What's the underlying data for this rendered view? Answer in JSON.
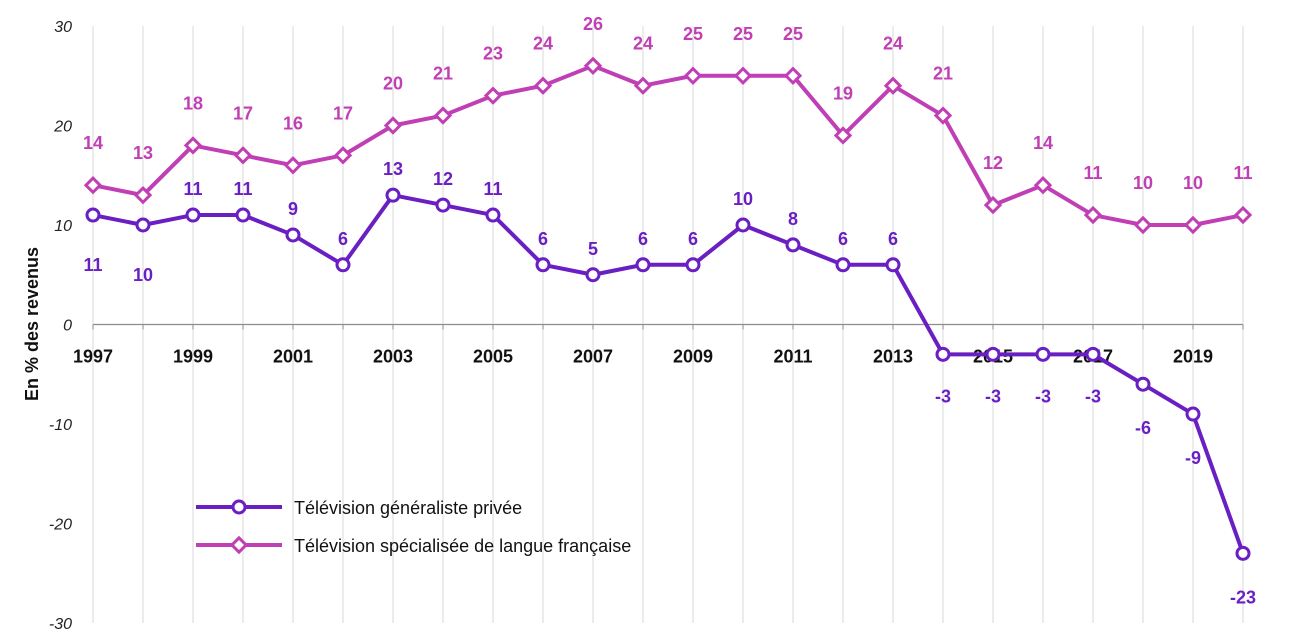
{
  "chart_data": {
    "type": "line",
    "ylabel": "En % des revenus",
    "ylim": [
      -30,
      30
    ],
    "yticks": [
      "30",
      "20",
      "10",
      "0",
      "-10",
      "-20",
      "-30"
    ],
    "xtick_labels": [
      "1997",
      "1999",
      "2001",
      "2003",
      "2005",
      "2007",
      "2009",
      "2011",
      "2013",
      "2015",
      "2017",
      "2019"
    ],
    "x": [
      1997,
      1998,
      1999,
      2000,
      2001,
      2002,
      2003,
      2004,
      2005,
      2006,
      2007,
      2008,
      2009,
      2010,
      2011,
      2012,
      2013,
      2014,
      2015,
      2016,
      2017,
      2018,
      2019,
      2020
    ],
    "grid": "vertical",
    "legend_position": "bottom-left",
    "series": [
      {
        "name": "Télévision généraliste privée",
        "color": "#6a1fc2",
        "marker": "circle",
        "values": [
          11,
          10,
          11,
          11,
          9,
          6,
          13,
          12,
          11,
          6,
          5,
          6,
          6,
          10,
          8,
          6,
          6,
          -3,
          -3,
          -3,
          -3,
          -6,
          -9,
          -23
        ],
        "labels": [
          "11",
          "10",
          "11",
          "11",
          "9",
          "6",
          "13",
          "12",
          "11",
          "6",
          "5",
          "6",
          "6",
          "10",
          "8",
          "6",
          "6",
          "-3",
          "-3",
          "-3",
          "-3",
          "-6",
          "-9",
          "-23"
        ]
      },
      {
        "name": "Télévision spécialisée de langue française",
        "color": "#c13fb4",
        "marker": "diamond",
        "values": [
          14,
          13,
          18,
          17,
          16,
          17,
          20,
          21,
          23,
          24,
          26,
          24,
          25,
          25,
          25,
          19,
          24,
          21,
          12,
          14,
          11,
          10,
          10,
          11
        ],
        "labels": [
          "14",
          "13",
          "18",
          "17",
          "16",
          "17",
          "20",
          "21",
          "23",
          "24",
          "26",
          "24",
          "25",
          "25",
          "25",
          "19",
          "24",
          "21",
          "12",
          "14",
          "11",
          "10",
          "10",
          "11"
        ]
      }
    ]
  }
}
